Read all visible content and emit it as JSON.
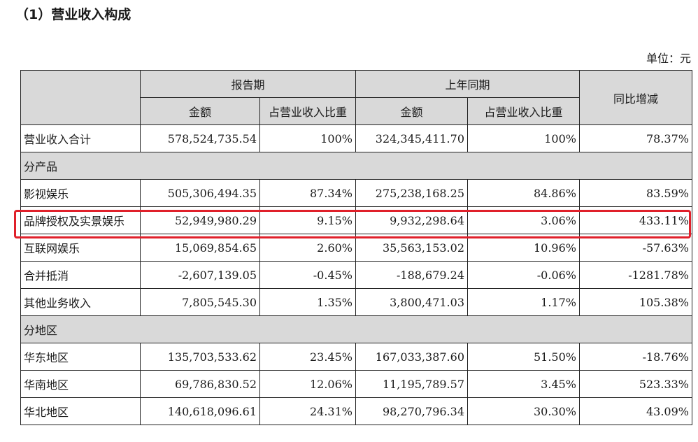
{
  "title": "（1）营业收入构成",
  "unit": "单位：元",
  "colors": {
    "header_bg": "#d9d9d9",
    "highlight_border": "#e0202a"
  },
  "header": {
    "report_period": "报告期",
    "prior_period": "上年同期",
    "yoy": "同比增减",
    "amount": "金额",
    "share": "占营业收入比重"
  },
  "total_row": {
    "label": "营业收入合计",
    "cells": [
      "578,524,735.54",
      "100%",
      "324,345,411.70",
      "100%",
      "78.37%"
    ]
  },
  "sections": [
    {
      "label": "分产品",
      "rows": [
        {
          "label": "影视娱乐",
          "cells": [
            "505,306,494.35",
            "87.34%",
            "275,238,168.25",
            "84.86%",
            "83.59%"
          ]
        },
        {
          "label": "品牌授权及实景娱乐",
          "cells": [
            "52,949,980.29",
            "9.15%",
            "9,932,298.64",
            "3.06%",
            "433.11%"
          ]
        },
        {
          "label": "互联网娱乐",
          "cells": [
            "15,069,854.65",
            "2.60%",
            "35,563,153.02",
            "10.96%",
            "-57.63%"
          ]
        },
        {
          "label": "合并抵消",
          "cells": [
            "-2,607,139.05",
            "-0.45%",
            "-188,679.24",
            "-0.06%",
            "-1281.78%"
          ]
        },
        {
          "label": "其他业务收入",
          "cells": [
            "7,805,545.30",
            "1.35%",
            "3,800,471.03",
            "1.17%",
            "105.38%"
          ]
        }
      ]
    },
    {
      "label": "分地区",
      "rows": [
        {
          "label": "华东地区",
          "cells": [
            "135,703,533.62",
            "23.45%",
            "167,033,387.60",
            "51.50%",
            "-18.76%"
          ]
        },
        {
          "label": "华南地区",
          "cells": [
            "69,786,830.52",
            "12.06%",
            "11,195,789.57",
            "3.45%",
            "523.33%"
          ]
        },
        {
          "label": "华北地区",
          "cells": [
            "140,618,096.61",
            "24.31%",
            "98,270,796.34",
            "30.30%",
            "43.09%"
          ]
        }
      ]
    }
  ]
}
